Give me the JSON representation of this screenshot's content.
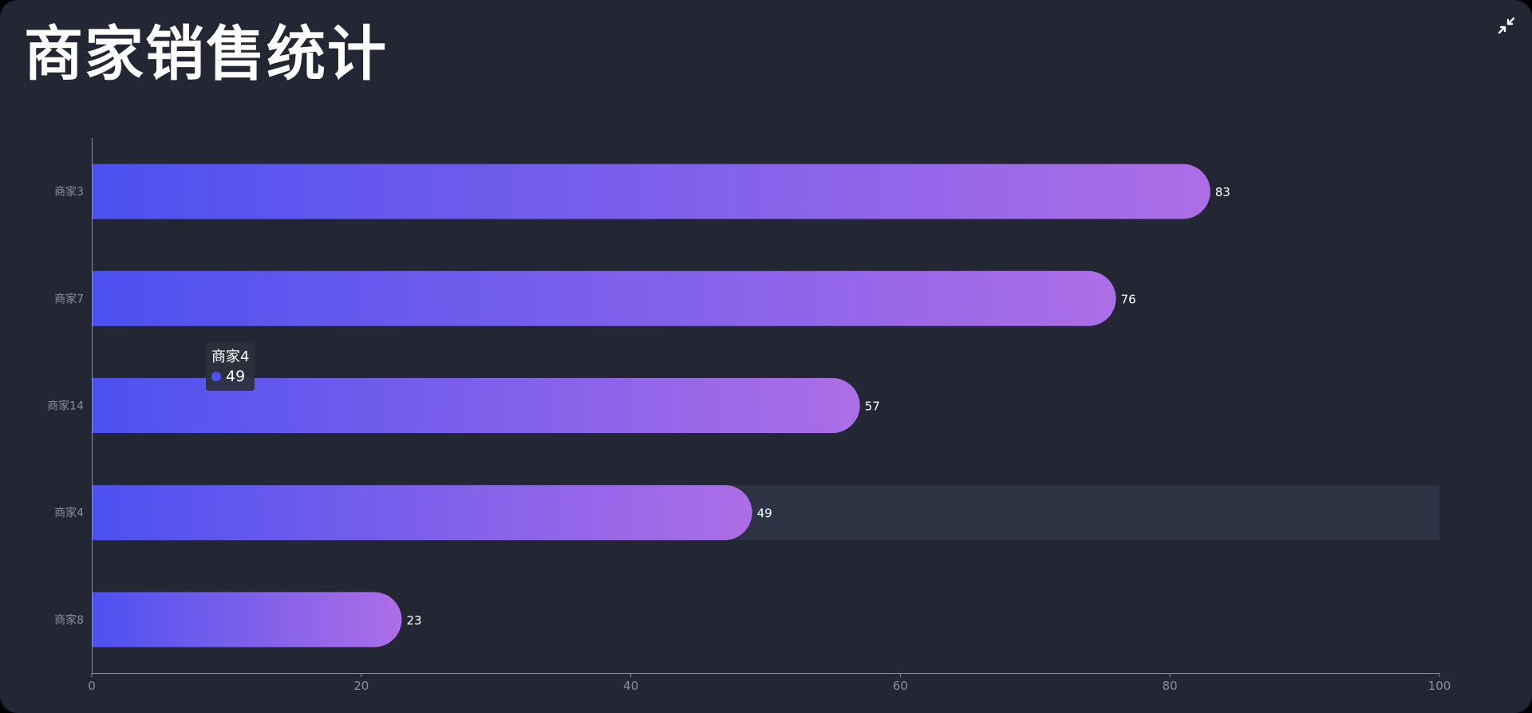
{
  "header": {
    "title": "商家销售统计",
    "compress_icon": "compress-arrows-icon"
  },
  "colors": {
    "background": "#222733",
    "bar_start": "#4c51f0",
    "bar_end": "#ad6ee6",
    "hover_band": "#2e3344",
    "axis": "#8a8f9c",
    "label": "#ffffff"
  },
  "chart_data": {
    "type": "bar",
    "orientation": "horizontal",
    "categories": [
      "商家3",
      "商家7",
      "商家14",
      "商家4",
      "商家8"
    ],
    "values": [
      83,
      76,
      57,
      49,
      23
    ],
    "xlim": [
      0,
      100
    ],
    "xticks": [
      0,
      20,
      40,
      60,
      80,
      100
    ],
    "grid": false,
    "data_labels": true,
    "highlighted_category": "商家4"
  },
  "tooltip": {
    "name": "商家4",
    "value": "49"
  }
}
